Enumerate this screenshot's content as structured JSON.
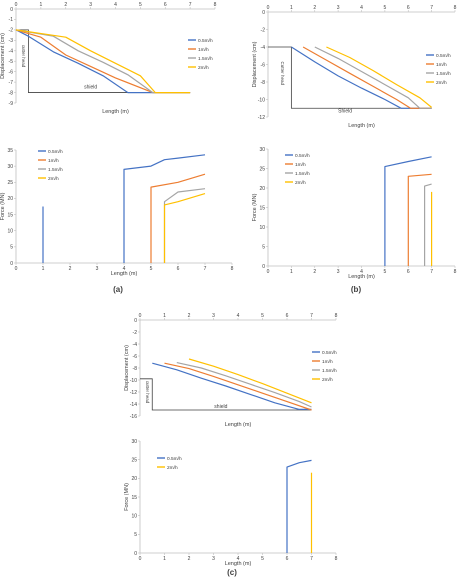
{
  "panels": [
    {
      "label": "(a)"
    },
    {
      "label": "(b)"
    },
    {
      "label": "(c)"
    }
  ],
  "chart_data": [
    {
      "type": "line",
      "panel": "(a)",
      "part": "displacement",
      "title": "",
      "xlabel": "Length (m)",
      "ylabel": "Displacement (cm)",
      "xlim": [
        0,
        8
      ],
      "ylim": [
        -9,
        0
      ],
      "xticks": [
        0,
        1,
        2,
        3,
        4,
        5,
        6,
        7,
        8
      ],
      "yticks": [
        0,
        -1,
        -2,
        -3,
        -4,
        -5,
        -6,
        -7,
        -8,
        -9
      ],
      "grid": false,
      "legend": "right",
      "colors": [
        "#4472C4",
        "#ED7D31",
        "#A5A5A5",
        "#FFC000"
      ],
      "annotations": [
        "cutter head",
        "shield"
      ],
      "series": [
        {
          "name": "0.5m/h",
          "x": [
            0,
            0.5,
            1.5,
            2.5,
            3.5,
            4.5,
            5,
            7
          ],
          "y": [
            -2,
            -2.6,
            -4.1,
            -5.2,
            -6.4,
            -8,
            -8,
            -8
          ]
        },
        {
          "name": "1m/h",
          "x": [
            0,
            1,
            2,
            3,
            4,
            5.5,
            7
          ],
          "y": [
            -2,
            -2.7,
            -4.4,
            -5.5,
            -6.6,
            -8,
            -8
          ]
        },
        {
          "name": "1.5m/h",
          "x": [
            0,
            1.5,
            2.5,
            3.5,
            4.5,
            5.5,
            7
          ],
          "y": [
            -2,
            -2.6,
            -4,
            -5.1,
            -6.3,
            -8,
            -8
          ]
        },
        {
          "name": "2m/h",
          "x": [
            0,
            2,
            3,
            4,
            5,
            5.6,
            7
          ],
          "y": [
            -2,
            -2.7,
            -4,
            -5.2,
            -6.4,
            -8,
            -8
          ]
        }
      ]
    },
    {
      "type": "line",
      "panel": "(a)",
      "part": "force",
      "title": "",
      "xlabel": "Length (m)",
      "ylabel": "Force (MN)",
      "xlim": [
        0,
        8
      ],
      "ylim": [
        0,
        35
      ],
      "xticks": [
        0,
        1,
        2,
        3,
        4,
        5,
        6,
        7,
        8
      ],
      "yticks": [
        0,
        5,
        10,
        15,
        20,
        25,
        30,
        35
      ],
      "grid": false,
      "legend": "top-left",
      "colors": [
        "#4472C4",
        "#ED7D31",
        "#A5A5A5",
        "#FFC000"
      ],
      "series": [
        {
          "name": "0.5m/h",
          "x": [
            1,
            1
          ],
          "y": [
            0,
            17.5
          ]
        },
        {
          "name": "0.5m/h",
          "x": [
            4,
            4,
            5,
            5.5,
            6,
            7
          ],
          "y": [
            0,
            29,
            30,
            32,
            32.5,
            33.5
          ]
        },
        {
          "name": "1m/h",
          "x": [
            5,
            5,
            6,
            7
          ],
          "y": [
            0,
            23.5,
            25,
            27.5
          ]
        },
        {
          "name": "1.5m/h",
          "x": [
            5.5,
            5.5,
            6,
            7
          ],
          "y": [
            0,
            19,
            22,
            23
          ]
        },
        {
          "name": "2m/h",
          "x": [
            5.5,
            5.5,
            6,
            7
          ],
          "y": [
            0,
            18,
            19,
            21.5
          ]
        }
      ]
    },
    {
      "type": "line",
      "panel": "(b)",
      "part": "displacement",
      "title": "",
      "xlabel": "Length (m)",
      "ylabel": "Displacement (cm)",
      "xlim": [
        0,
        8
      ],
      "ylim": [
        -12,
        0
      ],
      "xticks": [
        0,
        1,
        2,
        3,
        4,
        5,
        6,
        7,
        8
      ],
      "yticks": [
        0,
        -2,
        -4,
        -6,
        -8,
        -10,
        -12
      ],
      "grid": false,
      "legend": "right",
      "colors": [
        "#4472C4",
        "#ED7D31",
        "#A5A5A5",
        "#FFC000"
      ],
      "annotations": [
        "Cutter head",
        "Shield"
      ],
      "series": [
        {
          "name": "0.5m/h",
          "x": [
            1,
            2,
            3,
            4,
            5,
            5.7,
            7
          ],
          "y": [
            -4,
            -5.7,
            -7.3,
            -8.7,
            -10,
            -11,
            -11
          ]
        },
        {
          "name": "1m/h",
          "x": [
            1.5,
            2.5,
            3.5,
            4.5,
            5.5,
            6.1,
            7
          ],
          "y": [
            -4,
            -5.5,
            -7,
            -8.5,
            -10,
            -11,
            -11
          ]
        },
        {
          "name": "1.5m/h",
          "x": [
            2,
            3,
            4,
            5,
            6,
            6.5,
            7
          ],
          "y": [
            -4,
            -5.3,
            -6.8,
            -8.3,
            -9.8,
            -11,
            -11
          ]
        },
        {
          "name": "2m/h",
          "x": [
            2.5,
            3.5,
            4.5,
            5.5,
            6.5,
            7
          ],
          "y": [
            -4,
            -5.2,
            -6.7,
            -8.3,
            -9.8,
            -10.9
          ]
        }
      ]
    },
    {
      "type": "line",
      "panel": "(b)",
      "part": "force",
      "title": "",
      "xlabel": "Length (m)",
      "ylabel": "Force (MN)",
      "xlim": [
        0,
        8
      ],
      "ylim": [
        0,
        30
      ],
      "xticks": [
        0,
        1,
        2,
        3,
        4,
        5,
        6,
        7,
        8
      ],
      "yticks": [
        0,
        5,
        10,
        15,
        20,
        25,
        30
      ],
      "grid": false,
      "legend": "top-left",
      "colors": [
        "#4472C4",
        "#ED7D31",
        "#A5A5A5",
        "#FFC000"
      ],
      "series": [
        {
          "name": "0.5m/h",
          "x": [
            5,
            5,
            6,
            7
          ],
          "y": [
            0,
            25.5,
            26.8,
            28
          ]
        },
        {
          "name": "1m/h",
          "x": [
            6,
            6,
            7
          ],
          "y": [
            0,
            23,
            23.5
          ]
        },
        {
          "name": "1.5m/h",
          "x": [
            6.7,
            6.7,
            7
          ],
          "y": [
            0,
            20.5,
            21
          ]
        },
        {
          "name": "2m/h",
          "x": [
            7,
            7
          ],
          "y": [
            0,
            19
          ]
        }
      ]
    },
    {
      "type": "line",
      "panel": "(c)",
      "part": "displacement",
      "title": "",
      "xlabel": "Length (m)",
      "ylabel": "Displacement (cm)",
      "xlim": [
        0,
        8
      ],
      "ylim": [
        -16,
        0
      ],
      "xticks": [
        0,
        1,
        2,
        3,
        4,
        5,
        6,
        7,
        8
      ],
      "yticks": [
        0,
        -2,
        -4,
        -6,
        -8,
        -10,
        -12,
        -14,
        -16
      ],
      "grid": false,
      "legend": "right",
      "colors": [
        "#4472C4",
        "#ED7D31",
        "#A5A5A5",
        "#FFC000"
      ],
      "annotations": [
        "cutter head",
        "shield"
      ],
      "series": [
        {
          "name": "0.5m/h",
          "x": [
            0.5,
            1.5,
            2.5,
            3.5,
            4.5,
            5.5,
            6.5,
            7
          ],
          "y": [
            -7.2,
            -8.3,
            -9.7,
            -11,
            -12.4,
            -13.8,
            -14.9,
            -14.9
          ]
        },
        {
          "name": "1m/h",
          "x": [
            1,
            2,
            3,
            4,
            5,
            6,
            7
          ],
          "y": [
            -7.2,
            -8.1,
            -9.4,
            -10.8,
            -12.2,
            -13.6,
            -15
          ]
        },
        {
          "name": "1.5m/h",
          "x": [
            1.5,
            2.5,
            3.5,
            4.5,
            5.5,
            6.5,
            7
          ],
          "y": [
            -7.1,
            -8,
            -9.3,
            -10.7,
            -12.1,
            -13.6,
            -14.5
          ]
        },
        {
          "name": "2m/h",
          "x": [
            2,
            3,
            4,
            5,
            6,
            7
          ],
          "y": [
            -6.5,
            -7.7,
            -9.1,
            -10.6,
            -12.2,
            -13.8
          ]
        }
      ]
    },
    {
      "type": "line",
      "panel": "(c)",
      "part": "force",
      "title": "",
      "xlabel": "Length (m)",
      "ylabel": "Force (MN)",
      "xlim": [
        0,
        8
      ],
      "ylim": [
        0,
        30
      ],
      "xticks": [
        0,
        1,
        2,
        3,
        4,
        5,
        6,
        7,
        8
      ],
      "yticks": [
        0,
        5,
        10,
        15,
        20,
        25,
        30
      ],
      "grid": false,
      "legend": "top-left",
      "colors": [
        "#4472C4",
        "#ED7D31",
        "#A5A5A5",
        "#FFC000"
      ],
      "series": [
        {
          "name": "0.5m/h",
          "x": [
            6,
            6,
            6.5,
            7
          ],
          "y": [
            0,
            23,
            24.2,
            24.8
          ]
        },
        {
          "name": "2m/h",
          "x": [
            7,
            7
          ],
          "y": [
            0,
            21.5
          ]
        }
      ]
    }
  ]
}
